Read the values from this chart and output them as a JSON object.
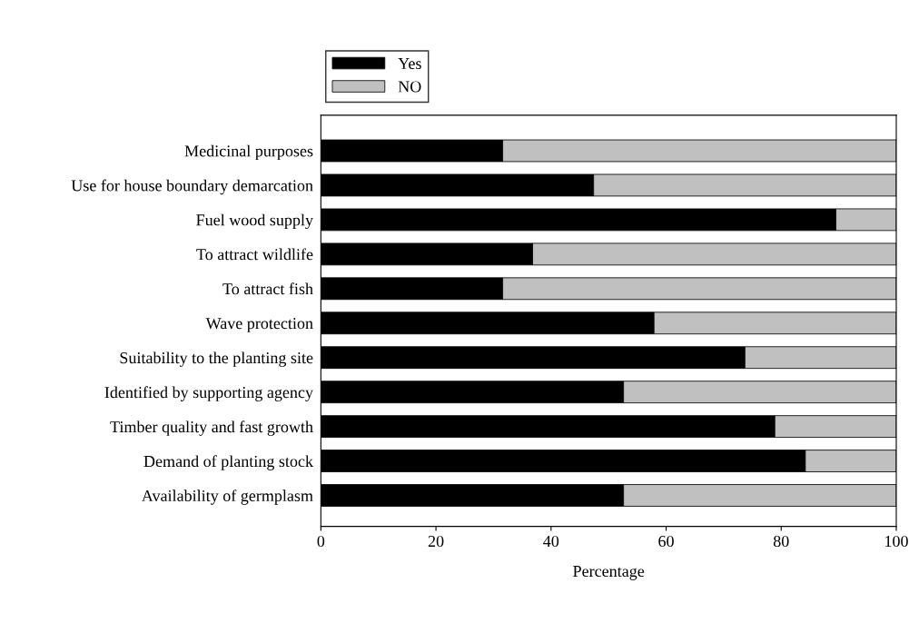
{
  "chart_data": {
    "type": "bar",
    "orientation": "horizontal",
    "stacked": true,
    "categories": [
      "Medicinal purposes",
      "Use for house boundary demarcation",
      "Fuel wood supply",
      "To attract wildlife",
      "To attract fish",
      "Wave protection",
      "Suitability to the planting site",
      "Identified by supporting agency",
      "Timber quality and fast growth",
      "Demand of planting stock",
      "Availability of germplasm"
    ],
    "series": [
      {
        "name": "Yes",
        "color": "#000000",
        "values": [
          31.6,
          47.4,
          89.5,
          36.8,
          31.6,
          57.9,
          73.7,
          52.6,
          78.9,
          84.2,
          52.6
        ]
      },
      {
        "name": "NO",
        "color": "#c0c0c0",
        "values": [
          68.4,
          52.6,
          10.5,
          63.2,
          68.4,
          42.1,
          26.3,
          47.4,
          21.1,
          15.8,
          47.4
        ]
      }
    ],
    "xlabel": "Percentage",
    "xlim": [
      0,
      100
    ],
    "xticks": [
      0,
      20,
      40,
      60,
      80,
      100
    ],
    "grid": false,
    "legend": "top left"
  }
}
